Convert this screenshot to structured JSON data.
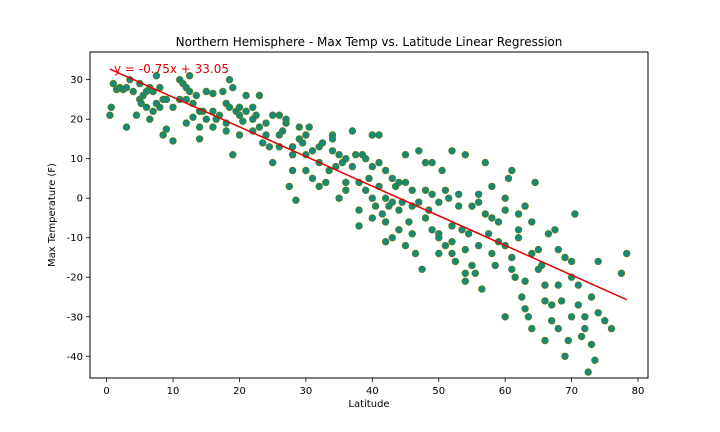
{
  "chart_data": {
    "type": "scatter",
    "title": "Northern Hemisphere - Max Temp vs. Latitude Linear Regression",
    "xlabel": "Latitude",
    "ylabel": "Max Temperature (F)",
    "xlim": [
      -2.5,
      81.5
    ],
    "ylim": [
      -45.5,
      37
    ],
    "xticks": [
      0,
      10,
      20,
      30,
      40,
      50,
      60,
      70,
      80
    ],
    "yticks": [
      -40,
      -30,
      -20,
      -10,
      0,
      10,
      20,
      30
    ],
    "grid": false,
    "legend": "none",
    "point_color": "#138a7a",
    "point_edge_color": "#5a7a1a",
    "regression": {
      "equation_text": "y = -0.75x + 33.05",
      "slope": -0.75,
      "intercept": 33.05,
      "x_start": 0.5,
      "x_end": 78.3,
      "color": "#e00000"
    },
    "series": [
      {
        "points": [
          [
            0.5,
            21
          ],
          [
            0.7,
            23
          ],
          [
            1,
            29
          ],
          [
            1.5,
            27.5
          ],
          [
            2,
            28
          ],
          [
            2.5,
            27.5
          ],
          [
            3,
            28
          ],
          [
            3,
            18
          ],
          [
            3.5,
            30
          ],
          [
            4,
            27
          ],
          [
            4.5,
            21
          ],
          [
            5,
            25
          ],
          [
            5,
            29
          ],
          [
            5.2,
            24
          ],
          [
            5.5,
            26
          ],
          [
            6,
            23
          ],
          [
            6,
            27
          ],
          [
            6.5,
            20
          ],
          [
            6.5,
            28
          ],
          [
            7,
            22
          ],
          [
            7,
            27
          ],
          [
            7.5,
            24
          ],
          [
            7.5,
            31
          ],
          [
            8,
            28
          ],
          [
            8,
            23
          ],
          [
            8.5,
            16
          ],
          [
            8.5,
            25
          ],
          [
            9,
            17.5
          ],
          [
            9,
            25
          ],
          [
            10,
            14.5
          ],
          [
            11,
            30
          ],
          [
            11,
            25
          ],
          [
            11.5,
            29
          ],
          [
            12,
            28
          ],
          [
            12,
            25
          ],
          [
            12.5,
            31
          ],
          [
            12.5,
            27
          ],
          [
            13,
            24
          ],
          [
            13,
            20.5
          ],
          [
            13.5,
            26
          ],
          [
            14,
            18
          ],
          [
            14,
            15
          ],
          [
            14.5,
            22
          ],
          [
            15,
            27
          ],
          [
            15,
            20
          ],
          [
            16,
            22
          ],
          [
            16,
            26.5
          ],
          [
            16.5,
            20
          ],
          [
            17,
            21
          ],
          [
            17.5,
            27
          ],
          [
            18,
            24
          ],
          [
            18,
            19
          ],
          [
            18.5,
            30
          ],
          [
            18.5,
            23
          ],
          [
            19,
            28
          ],
          [
            19,
            11
          ],
          [
            19.5,
            22
          ],
          [
            20,
            16
          ],
          [
            20,
            23
          ],
          [
            20.5,
            19.5
          ],
          [
            21,
            22
          ],
          [
            21,
            26
          ],
          [
            22,
            23
          ],
          [
            22,
            17
          ],
          [
            22.5,
            21
          ],
          [
            23,
            26
          ],
          [
            23,
            18
          ],
          [
            23.5,
            14
          ],
          [
            24,
            16
          ],
          [
            24.5,
            13
          ],
          [
            25,
            21
          ],
          [
            25,
            9
          ],
          [
            26,
            21
          ],
          [
            26,
            13
          ],
          [
            26.5,
            17
          ],
          [
            27,
            19
          ],
          [
            27,
            20
          ],
          [
            27.5,
            3
          ],
          [
            28,
            13
          ],
          [
            28,
            7
          ],
          [
            28.5,
            -0.5
          ],
          [
            29,
            18
          ],
          [
            29,
            15
          ],
          [
            29.5,
            14
          ],
          [
            30,
            16
          ],
          [
            30,
            11
          ],
          [
            30.5,
            18
          ],
          [
            31,
            12
          ],
          [
            31,
            5
          ],
          [
            32,
            13
          ],
          [
            32,
            3
          ],
          [
            32.5,
            14
          ],
          [
            33,
            4
          ],
          [
            33.5,
            7
          ],
          [
            34,
            16
          ],
          [
            34,
            15
          ],
          [
            34.5,
            8
          ],
          [
            35,
            0
          ],
          [
            35,
            11
          ],
          [
            35.5,
            9
          ],
          [
            36,
            10
          ],
          [
            36,
            2
          ],
          [
            37,
            17
          ],
          [
            37,
            8
          ],
          [
            37.5,
            11
          ],
          [
            38,
            -7
          ],
          [
            38,
            4
          ],
          [
            38.5,
            11
          ],
          [
            39,
            2
          ],
          [
            39,
            10
          ],
          [
            39.5,
            5
          ],
          [
            40,
            16
          ],
          [
            40,
            8
          ],
          [
            40,
            -5
          ],
          [
            40.5,
            -2
          ],
          [
            41,
            16
          ],
          [
            41,
            9
          ],
          [
            41,
            3
          ],
          [
            41.5,
            -4
          ],
          [
            42,
            0
          ],
          [
            42,
            -6
          ],
          [
            42,
            7
          ],
          [
            42.5,
            -2
          ],
          [
            43,
            5
          ],
          [
            43,
            -1
          ],
          [
            43,
            -10
          ],
          [
            43.5,
            3
          ],
          [
            44,
            -8
          ],
          [
            44,
            4
          ],
          [
            44.5,
            -1
          ],
          [
            45,
            -12
          ],
          [
            45,
            11
          ],
          [
            45,
            4
          ],
          [
            45.5,
            -6
          ],
          [
            46,
            2
          ],
          [
            46,
            -2
          ],
          [
            46.5,
            -14
          ],
          [
            47,
            12
          ],
          [
            47,
            -1
          ],
          [
            47.5,
            -18
          ],
          [
            48,
            9
          ],
          [
            48,
            2
          ],
          [
            48.5,
            -3
          ],
          [
            49,
            -8
          ],
          [
            49,
            1
          ],
          [
            49,
            9
          ],
          [
            50,
            -1
          ],
          [
            50,
            -9
          ],
          [
            50,
            -14
          ],
          [
            50.5,
            7
          ],
          [
            51,
            -12
          ],
          [
            51,
            2
          ],
          [
            51.5,
            0
          ],
          [
            52,
            -11
          ],
          [
            52,
            -14
          ],
          [
            52,
            12
          ],
          [
            52.5,
            -16
          ],
          [
            53,
            -2
          ],
          [
            53,
            1
          ],
          [
            53.5,
            -8
          ],
          [
            54,
            -13
          ],
          [
            54,
            -19
          ],
          [
            54,
            11
          ],
          [
            54.5,
            -9
          ],
          [
            55,
            -2
          ],
          [
            55,
            -17
          ],
          [
            55.5,
            -19
          ],
          [
            56,
            -1
          ],
          [
            56,
            1
          ],
          [
            56.5,
            -23
          ],
          [
            57,
            -4
          ],
          [
            57,
            9
          ],
          [
            57.5,
            -9
          ],
          [
            58,
            3
          ],
          [
            58,
            -14
          ],
          [
            58.5,
            -17
          ],
          [
            59,
            -11
          ],
          [
            59,
            -6
          ],
          [
            60,
            -30
          ],
          [
            60,
            -12
          ],
          [
            60,
            0
          ],
          [
            60.5,
            5
          ],
          [
            61,
            -15
          ],
          [
            61,
            -18
          ],
          [
            61,
            7
          ],
          [
            61.5,
            -20
          ],
          [
            62,
            -8
          ],
          [
            62,
            -4
          ],
          [
            62.5,
            -25
          ],
          [
            63,
            -2
          ],
          [
            63,
            -21
          ],
          [
            63,
            -28
          ],
          [
            63.5,
            -30
          ],
          [
            64,
            -33
          ],
          [
            64,
            -6
          ],
          [
            64.5,
            4
          ],
          [
            65,
            -18
          ],
          [
            65,
            -13
          ],
          [
            65.5,
            -17
          ],
          [
            66,
            -22
          ],
          [
            66,
            -36
          ],
          [
            66.5,
            -9
          ],
          [
            67,
            -27
          ],
          [
            67,
            -31
          ],
          [
            67.5,
            -8
          ],
          [
            68,
            -13
          ],
          [
            68,
            -33
          ],
          [
            68.5,
            -26
          ],
          [
            69,
            -15
          ],
          [
            69,
            -40
          ],
          [
            69.5,
            -36
          ],
          [
            70,
            -16
          ],
          [
            70,
            -30
          ],
          [
            70.5,
            -4
          ],
          [
            71,
            -27
          ],
          [
            71,
            -22
          ],
          [
            71.5,
            -35
          ],
          [
            72,
            -33
          ],
          [
            72.5,
            -44
          ],
          [
            73,
            -25
          ],
          [
            73,
            -37
          ],
          [
            73.5,
            -41
          ],
          [
            74,
            -29
          ],
          [
            74,
            -16
          ],
          [
            76,
            -33
          ],
          [
            77.5,
            -19
          ],
          [
            78.3,
            -14
          ],
          [
            75,
            -31
          ],
          [
            72,
            -30
          ],
          [
            70,
            -20
          ],
          [
            68,
            -22
          ],
          [
            66,
            -26
          ],
          [
            64,
            -14
          ],
          [
            62,
            -10
          ],
          [
            60,
            -3
          ],
          [
            58,
            -5
          ],
          [
            56,
            -12
          ],
          [
            54,
            -21
          ],
          [
            52,
            -7
          ],
          [
            50,
            -10
          ],
          [
            48,
            -5
          ],
          [
            46,
            -9
          ],
          [
            44,
            -3
          ],
          [
            42,
            -11
          ],
          [
            40,
            0
          ],
          [
            38,
            -3
          ],
          [
            36,
            4
          ],
          [
            34,
            12
          ],
          [
            32,
            9
          ],
          [
            30,
            7
          ],
          [
            28,
            11
          ],
          [
            26,
            16
          ],
          [
            24,
            19
          ],
          [
            22,
            20
          ],
          [
            20,
            21
          ],
          [
            18,
            17
          ],
          [
            16,
            18
          ],
          [
            14,
            22
          ],
          [
            12,
            19
          ],
          [
            10,
            23
          ]
        ]
      }
    ]
  }
}
